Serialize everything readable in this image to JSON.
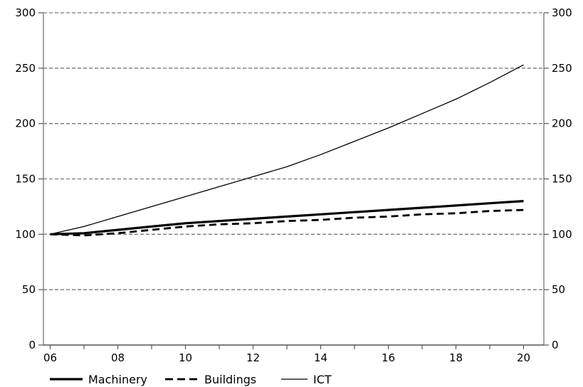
{
  "chart_data": {
    "type": "line",
    "title": "",
    "xlabel": "",
    "ylabel": "",
    "x": [
      6,
      7,
      8,
      9,
      10,
      11,
      12,
      13,
      14,
      15,
      16,
      17,
      18,
      19,
      20
    ],
    "x_tick_values": [
      6,
      8,
      10,
      12,
      14,
      16,
      18,
      20
    ],
    "x_tick_labels": [
      "06",
      "08",
      "10",
      "12",
      "14",
      "16",
      "18",
      "20"
    ],
    "xlim": [
      5.8,
      20.6
    ],
    "ylim": [
      0,
      300
    ],
    "y_ticks": [
      0,
      50,
      100,
      150,
      200,
      250,
      300
    ],
    "y_tick_labels": [
      "0",
      "50",
      "100",
      "150",
      "200",
      "250",
      "300"
    ],
    "y_axis_both_sides": true,
    "grid": "horizontal-dashed",
    "legend": "bottom-left",
    "series": [
      {
        "name": "Machinery",
        "style": "thick-solid",
        "color": "#000000",
        "values": [
          100,
          101,
          104,
          107,
          110,
          112,
          114,
          116,
          118,
          120,
          122,
          124,
          126,
          128,
          130
        ]
      },
      {
        "name": "Buildings",
        "style": "dashed",
        "color": "#000000",
        "values": [
          100,
          99,
          101,
          104,
          107,
          109,
          110,
          112,
          113,
          115,
          116,
          118,
          119,
          121,
          122
        ]
      },
      {
        "name": "ICT",
        "style": "thin-solid",
        "color": "#000000",
        "values": [
          100,
          107,
          116,
          125,
          134,
          143,
          152,
          161,
          172,
          184,
          196,
          209,
          222,
          237,
          253
        ]
      }
    ]
  }
}
